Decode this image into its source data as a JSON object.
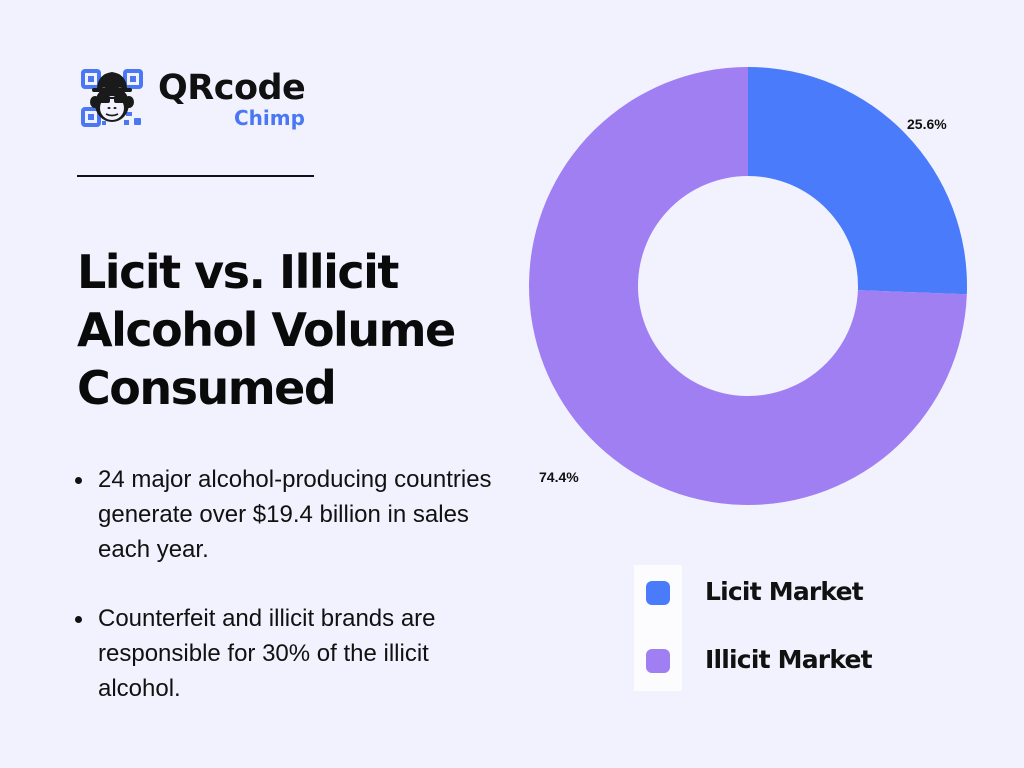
{
  "brand": {
    "name": "QRcode",
    "sub": "Chimp",
    "accent_color": "#4a78f5"
  },
  "title": {
    "lines": [
      "Licit vs. Illicit",
      "Alcohol Volume",
      "Consumed"
    ]
  },
  "bullets": [
    {
      "text": "24 major alcohol-producing countries generate over $19.4 billion in sales each year."
    },
    {
      "text": "Counterfeit and illicit brands are responsible for 30% of the illicit alcohol."
    }
  ],
  "legend": [
    {
      "label": "Licit Market",
      "color": "#4a7bfb"
    },
    {
      "label": "Illicit Market",
      "color": "#a07ff2"
    }
  ],
  "labels": {
    "licit_pct": "25.6%",
    "illicit_pct": "74.4%"
  },
  "chart_data": {
    "type": "pie",
    "variant": "donut",
    "title": "Licit vs. Illicit Alcohol Volume Consumed",
    "categories": [
      "Licit Market",
      "Illicit Market"
    ],
    "values": [
      25.6,
      74.4
    ],
    "unit": "%",
    "colors": [
      "#4a7bfb",
      "#a07ff2"
    ],
    "legend_position": "bottom-right",
    "data_labels": [
      "25.6%",
      "74.4%"
    ]
  }
}
